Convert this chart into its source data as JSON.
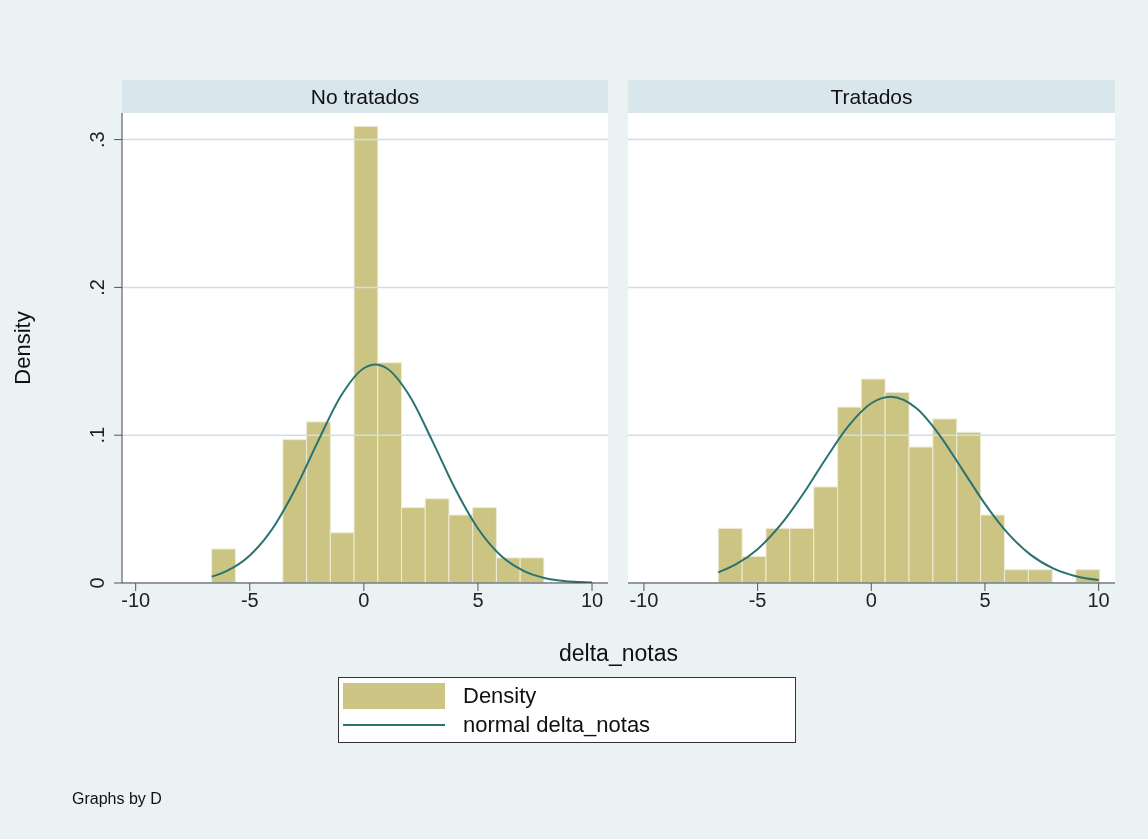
{
  "chart_data": [
    {
      "type": "histogram",
      "title": "No tratados",
      "xlabel": "delta_notas",
      "ylabel": "Density",
      "xlim": [
        -10.6,
        10.7
      ],
      "xticks": [
        -10,
        -5,
        0,
        5,
        10
      ],
      "ylim": [
        0,
        0.318
      ],
      "yticks": [
        0,
        {
          "value": 0.1,
          "label": ".1"
        },
        {
          "value": 0.2,
          "label": ".2"
        },
        {
          "value": 0.3,
          "label": ".3"
        }
      ],
      "grid": "y",
      "legend": "bottom",
      "annotations": [
        "Graphs by D"
      ],
      "series": [
        {
          "name": "Density",
          "color": "#cbc482",
          "bins": [
            -6.67,
            -5.63,
            -4.59,
            -3.55,
            -2.51,
            -1.47,
            -0.43,
            0.61,
            1.65,
            2.69,
            3.73,
            4.77,
            5.81,
            6.85,
            7.89
          ],
          "values": [
            0.023,
            0,
            0,
            0.097,
            0.109,
            0.034,
            0.309,
            0.149,
            0.051,
            0.057,
            0.046,
            0.051,
            0.017,
            0.017
          ]
        },
        {
          "name": "normal delta_notas",
          "type": "line",
          "color": "#2a7272",
          "x": [
            -6.67,
            -6,
            -5,
            -4,
            -3,
            -2,
            -1,
            0,
            0.5,
            1,
            2,
            3,
            4,
            5,
            6,
            7,
            8,
            9,
            10
          ],
          "values": [
            0.0043,
            0.0082,
            0.0186,
            0.0369,
            0.0638,
            0.0962,
            0.1267,
            0.1453,
            0.1478,
            0.1453,
            0.1267,
            0.0962,
            0.0638,
            0.0369,
            0.0186,
            0.0082,
            0.0031,
            0.001,
            0.0003
          ]
        }
      ]
    },
    {
      "type": "histogram",
      "title": "Tratados",
      "xlim": [
        -10.7,
        10.72
      ],
      "xticks": [
        -10,
        -5,
        0,
        5,
        10
      ],
      "ylim": [
        0,
        0.318
      ],
      "yticks": [
        0,
        0.1,
        0.2,
        0.3
      ],
      "grid": "y",
      "tick_labels": "x",
      "series": [
        {
          "color": "#cbc482",
          "bins": [
            -6.73,
            -5.68,
            -4.63,
            -3.58,
            -2.53,
            -1.48,
            -0.44,
            0.61,
            1.66,
            2.71,
            3.76,
            4.81,
            5.86,
            6.91,
            7.96,
            9.0,
            10.05
          ],
          "values": [
            0.037,
            0.018,
            0.037,
            0.037,
            0.065,
            0.119,
            0.138,
            0.129,
            0.092,
            0.111,
            0.102,
            0.046,
            0.009,
            0.009,
            0,
            0.009
          ]
        },
        {
          "type": "line",
          "color": "#2a7272",
          "x": [
            -6.73,
            -6,
            -5,
            -4,
            -3,
            -2,
            -1,
            0,
            0.85,
            2,
            3,
            4,
            5,
            6,
            7,
            8,
            9,
            10
          ],
          "values": [
            0.0072,
            0.0122,
            0.0229,
            0.0391,
            0.0602,
            0.0841,
            0.1063,
            0.1216,
            0.126,
            0.118,
            0.1001,
            0.0769,
            0.0535,
            0.0337,
            0.0192,
            0.0099,
            0.0046,
            0.002
          ]
        }
      ]
    }
  ]
}
